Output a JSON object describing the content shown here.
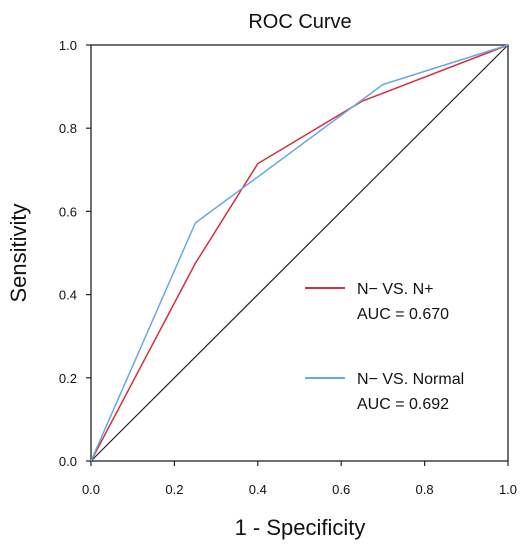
{
  "chart_data": {
    "type": "line",
    "title": "ROC Curve",
    "xlabel": "1 - Specificity",
    "ylabel": "Sensitivity",
    "xlim": [
      0.0,
      1.0
    ],
    "ylim": [
      0.0,
      1.0
    ],
    "x_ticks": [
      "0.0",
      "0.2",
      "0.4",
      "0.6",
      "0.8",
      "1.0"
    ],
    "y_ticks": [
      "0.0",
      "0.2",
      "0.4",
      "0.6",
      "0.8",
      "1.0"
    ],
    "grid": false,
    "legend_position": "right-middle",
    "reference_line": {
      "x": [
        0,
        1
      ],
      "y": [
        0,
        1
      ],
      "color": "#222222"
    },
    "series": [
      {
        "name": "N− VS. N+",
        "annotation": "AUC = 0.670",
        "color": "#d6303f",
        "x": [
          0.0,
          0.25,
          0.4,
          0.65,
          1.0
        ],
        "y": [
          0.0,
          0.475,
          0.715,
          0.865,
          1.0
        ]
      },
      {
        "name": "N− VS. Normal",
        "annotation": "AUC = 0.692",
        "color": "#6aa8e0",
        "x": [
          0.0,
          0.25,
          0.7,
          1.0
        ],
        "y": [
          0.0,
          0.572,
          0.905,
          1.0
        ]
      }
    ]
  }
}
